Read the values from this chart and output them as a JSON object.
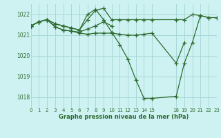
{
  "title": "Graphe pression niveau de la mer (hPa)",
  "bg_color": "#cef2f2",
  "grid_color": "#a8d8d8",
  "line_color": "#2d6a2d",
  "series": [
    {
      "x": [
        0,
        1,
        2,
        3,
        4,
        5,
        6,
        7,
        8,
        9,
        10,
        11,
        12,
        13,
        14,
        15,
        18,
        19,
        20,
        21,
        22,
        23
      ],
      "y": [
        1021.45,
        1021.65,
        1021.75,
        1021.55,
        1021.45,
        1021.35,
        1021.25,
        1021.75,
        1022.2,
        1022.3,
        1021.75,
        1021.75,
        1021.75,
        1021.75,
        1021.75,
        1021.75,
        1021.75,
        1021.75,
        1022.0,
        1021.95,
        1021.85,
        1021.85
      ]
    },
    {
      "x": [
        0,
        1,
        2,
        3,
        4,
        5,
        6,
        7,
        8,
        9,
        10,
        11,
        12,
        13,
        14,
        15,
        18,
        19,
        20,
        21,
        22
      ],
      "y": [
        1021.45,
        1021.65,
        1021.75,
        1021.55,
        1021.45,
        1021.35,
        1021.25,
        1022.0,
        1022.25,
        1021.75,
        1021.15,
        1020.55,
        1019.85,
        1018.85,
        1017.95,
        1017.95,
        1018.05,
        1019.65,
        1020.65,
        1021.95,
        1021.85
      ]
    },
    {
      "x": [
        0,
        1,
        2,
        3,
        4,
        5,
        6,
        7,
        8,
        9,
        10
      ],
      "y": [
        1021.45,
        1021.65,
        1021.75,
        1021.4,
        1021.25,
        1021.2,
        1021.15,
        1021.3,
        1021.45,
        1021.65,
        1021.45
      ]
    },
    {
      "x": [
        0,
        1,
        2,
        3,
        4,
        5,
        6,
        7,
        8,
        9,
        10,
        11,
        12,
        13,
        14,
        15,
        18,
        19
      ],
      "y": [
        1021.45,
        1021.65,
        1021.75,
        1021.4,
        1021.25,
        1021.2,
        1021.1,
        1021.05,
        1021.1,
        1021.1,
        1021.1,
        1021.05,
        1021.0,
        1021.0,
        1021.05,
        1021.1,
        1019.65,
        1020.65
      ]
    }
  ],
  "xlim": [
    0,
    23
  ],
  "ylim": [
    1017.5,
    1022.5
  ],
  "yticks": [
    1018,
    1019,
    1020,
    1021,
    1022
  ],
  "xtick_positions": [
    0,
    1,
    2,
    3,
    4,
    5,
    6,
    7,
    8,
    9,
    10,
    11,
    12,
    13,
    14,
    15,
    18,
    19,
    20,
    21,
    22,
    23
  ],
  "xtick_labels": [
    "0",
    "1",
    "2",
    "3",
    "4",
    "5",
    "6",
    "7",
    "8",
    "9",
    "10",
    "11",
    "12",
    "13",
    "14",
    "15",
    "18",
    "19",
    "20",
    "21",
    "22",
    "23"
  ]
}
